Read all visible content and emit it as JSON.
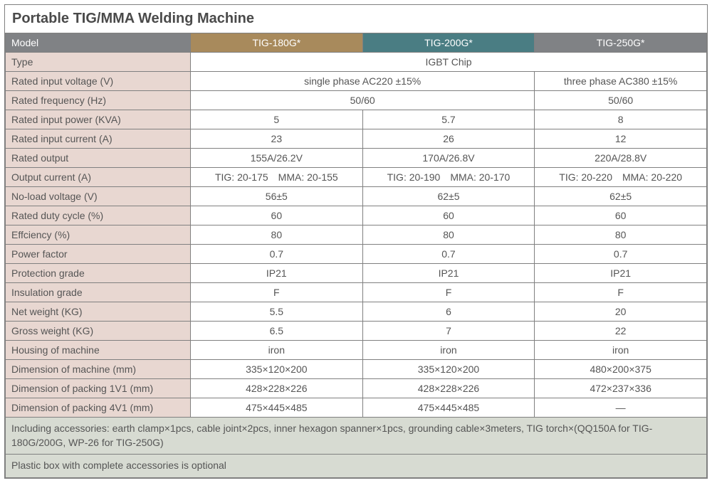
{
  "title": "Portable TIG/MMA Welding Machine",
  "header": {
    "label": "Model",
    "cols": [
      "TIG-180G*",
      "TIG-200G*",
      "TIG-250G*"
    ]
  },
  "header_colors": [
    "#a88a5c",
    "#4a7d83",
    "#808285"
  ],
  "label_bg": "#e8d7d1",
  "footer_bg": "#d7dbd2",
  "border_color": "#808080",
  "rows": {
    "type": {
      "label": "Type",
      "span3": "IGBT Chip"
    },
    "voltage": {
      "label": "Rated input voltage (V)",
      "span2": "single phase AC220 ±15%",
      "c3": "three phase AC380 ±15%"
    },
    "freq": {
      "label": "Rated frequency (Hz)",
      "span2": "50/60",
      "c3": "50/60"
    },
    "power": {
      "label": "Rated input power (KVA)",
      "c1": "5",
      "c2": "5.7",
      "c3": "8"
    },
    "current": {
      "label": "Rated input current (A)",
      "c1": "23",
      "c2": "26",
      "c3": "12"
    },
    "output": {
      "label": "Rated output",
      "c1": "155A/26.2V",
      "c2": "170A/26.8V",
      "c3": "220A/28.8V"
    },
    "outcurrent": {
      "label": "Output current (A)",
      "c1": "TIG: 20-175 MMA: 20-155",
      "c2": "TIG: 20-190 MMA: 20-170",
      "c3": "TIG: 20-220 MMA: 20-220"
    },
    "noload": {
      "label": "No-load voltage (V)",
      "c1": "56±5",
      "c2": "62±5",
      "c3": "62±5"
    },
    "duty": {
      "label": "Rated duty cycle (%)",
      "c1": "60",
      "c2": "60",
      "c3": "60"
    },
    "eff": {
      "label": "Effciency (%)",
      "c1": "80",
      "c2": "80",
      "c3": "80"
    },
    "pf": {
      "label": "Power factor",
      "c1": "0.7",
      "c2": "0.7",
      "c3": "0.7"
    },
    "prot": {
      "label": "Protection grade",
      "c1": "IP21",
      "c2": "IP21",
      "c3": "IP21"
    },
    "ins": {
      "label": "Insulation grade",
      "c1": "F",
      "c2": "F",
      "c3": "F"
    },
    "net": {
      "label": "Net weight (KG)",
      "c1": "5.5",
      "c2": "6",
      "c3": "20"
    },
    "gross": {
      "label": "Gross weight (KG)",
      "c1": "6.5",
      "c2": "7",
      "c3": "22"
    },
    "housing": {
      "label": "Housing of machine",
      "c1": "iron",
      "c2": "iron",
      "c3": "iron"
    },
    "dim_m": {
      "label": "Dimension of machine (mm)",
      "c1": "335×120×200",
      "c2": "335×120×200",
      "c3": "480×200×375"
    },
    "dim_1v1": {
      "label": "Dimension of packing 1V1 (mm)",
      "c1": "428×228×226",
      "c2": "428×228×226",
      "c3": "472×237×336"
    },
    "dim_4v1": {
      "label": "Dimension of packing 4V1 (mm)",
      "c1": "475×445×485",
      "c2": "475×445×485",
      "c3": "—"
    }
  },
  "footer1": "Including accessories: earth clamp×1pcs, cable joint×2pcs, inner hexagon spanner×1pcs, grounding cable×3meters, TIG torch×(QQ150A for TIG-180G/200G, WP-26 for TIG-250G)",
  "footer2": "Plastic box with complete accessories is optional"
}
